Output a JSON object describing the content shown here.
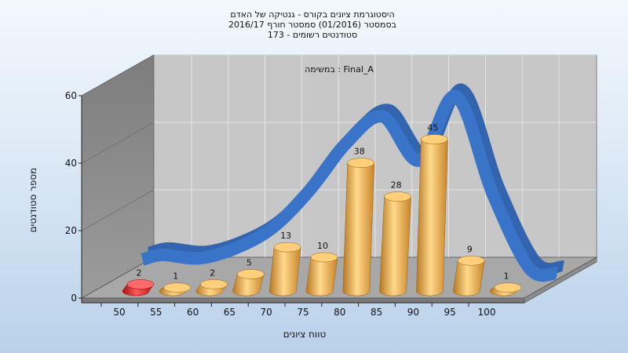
{
  "chart_data": {
    "type": "bar",
    "title_lines": [
      "היסטוגרמת ציונים בקורס - גנטיקה של האדם",
      "בסמסטר  (01/2016)  סמסטר חורף 2016/17",
      "סטודנטים רשומים - 173"
    ],
    "annotation": "במשימה : Final_A",
    "xlabel": "טווח ציונים",
    "ylabel": "מספר סטודנטים",
    "ylim": [
      0,
      60
    ],
    "y_ticks": [
      "0",
      "20",
      "40",
      "60"
    ],
    "x_ticks": [
      "50",
      "55",
      "60",
      "65",
      "70",
      "75",
      "80",
      "85",
      "90",
      "95",
      "100"
    ],
    "categories": [
      "50",
      "55",
      "60",
      "65",
      "70",
      "75",
      "80",
      "85",
      "90",
      "95",
      "100"
    ],
    "values": [
      2,
      1,
      2,
      5,
      13,
      10,
      38,
      28,
      45,
      9,
      1
    ],
    "data_labels": [
      "2",
      "1",
      "2",
      "5",
      "13",
      "10",
      "38",
      "28",
      "45",
      "9",
      "1"
    ],
    "curve_values": [
      5,
      4,
      7,
      13,
      24,
      38,
      46,
      33,
      52,
      23,
      1
    ],
    "grid": true,
    "colors": {
      "bar": "#e8a94a",
      "bar_highlight": "#ffd88a",
      "bar_shadow": "#a46a1c",
      "first_bar": "#d62020",
      "curve": "#3a74c8",
      "back_wall": "#c4c4c4",
      "side_wall": "#8a8a8a",
      "floor": "#a9a9a9"
    }
  }
}
